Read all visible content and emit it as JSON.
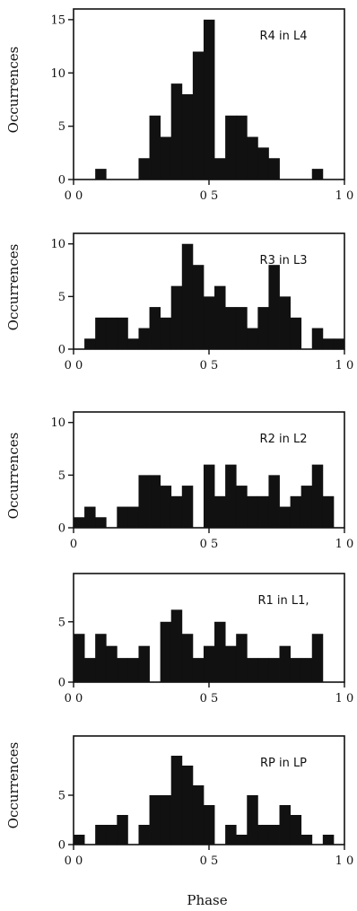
{
  "xlabel": "Phase",
  "chart_data": [
    {
      "type": "bar",
      "title": "R4 in L4",
      "ylabel": "Occurrences",
      "xlim": [
        0,
        1
      ],
      "ylim": [
        0,
        16
      ],
      "yticks": [
        "0",
        "5",
        "10",
        "15"
      ],
      "xticks": [
        "0 0",
        "0 5",
        "1 0"
      ],
      "bin_width": 0.04,
      "x": [
        0.08,
        0.24,
        0.28,
        0.32,
        0.36,
        0.4,
        0.44,
        0.48,
        0.52,
        0.56,
        0.6,
        0.64,
        0.68,
        0.72,
        0.76,
        0.88
      ],
      "values": [
        1,
        2,
        6,
        4,
        9,
        8,
        12,
        15,
        2,
        6,
        6,
        4,
        3,
        2,
        0,
        1
      ]
    },
    {
      "type": "bar",
      "title": "R3 in L3",
      "ylabel": "Occurrences",
      "xlim": [
        0,
        1
      ],
      "ylim": [
        0,
        11
      ],
      "yticks": [
        "0",
        "5",
        "10"
      ],
      "xticks": [
        "0 0",
        "0 5",
        "1 0"
      ],
      "bin_width": 0.04,
      "x": [
        0.0,
        0.04,
        0.08,
        0.12,
        0.16,
        0.2,
        0.24,
        0.28,
        0.32,
        0.36,
        0.4,
        0.44,
        0.48,
        0.52,
        0.56,
        0.6,
        0.64,
        0.68,
        0.72,
        0.76,
        0.8,
        0.84,
        0.88,
        0.92,
        0.96
      ],
      "values": [
        0,
        1,
        3,
        3,
        3,
        1,
        2,
        4,
        3,
        6,
        10,
        8,
        5,
        6,
        4,
        4,
        2,
        4,
        8,
        5,
        3,
        0,
        2,
        1,
        1
      ]
    },
    {
      "type": "bar",
      "title": "R2 in L2",
      "ylabel": "Occurrences",
      "xlim": [
        0,
        1
      ],
      "ylim": [
        0,
        11
      ],
      "yticks": [
        "0",
        "5",
        "10"
      ],
      "xticks": [
        "0",
        "0 5",
        "1 0"
      ],
      "bin_width": 0.04,
      "x": [
        0.0,
        0.04,
        0.08,
        0.12,
        0.16,
        0.2,
        0.24,
        0.28,
        0.32,
        0.36,
        0.4,
        0.44,
        0.48,
        0.52,
        0.56,
        0.6,
        0.64,
        0.68,
        0.72,
        0.76,
        0.8,
        0.84,
        0.88,
        0.92
      ],
      "values": [
        1,
        2,
        1,
        0,
        2,
        2,
        5,
        5,
        4,
        3,
        4,
        0,
        6,
        3,
        6,
        4,
        3,
        3,
        5,
        2,
        3,
        4,
        6,
        3
      ]
    },
    {
      "type": "bar",
      "title": "R1 in L1,",
      "ylabel": "",
      "xlim": [
        0,
        1
      ],
      "ylim": [
        0,
        9
      ],
      "yticks": [
        "0",
        "5"
      ],
      "xticks": [
        "0 0",
        "0 5",
        "1 0"
      ],
      "bin_width": 0.04,
      "x": [
        0.0,
        0.04,
        0.08,
        0.12,
        0.16,
        0.2,
        0.24,
        0.28,
        0.32,
        0.36,
        0.4,
        0.44,
        0.48,
        0.52,
        0.56,
        0.6,
        0.64,
        0.68,
        0.72,
        0.76,
        0.8,
        0.84,
        0.88
      ],
      "values": [
        4,
        2,
        4,
        3,
        2,
        2,
        3,
        0,
        5,
        6,
        4,
        2,
        3,
        5,
        3,
        4,
        2,
        2,
        2,
        3,
        2,
        2,
        4
      ]
    },
    {
      "type": "bar",
      "title": "RP in LP",
      "ylabel": "Occurrences",
      "xlim": [
        0,
        1
      ],
      "ylim": [
        0,
        11
      ],
      "yticks": [
        "0",
        "5"
      ],
      "xticks": [
        "0 0",
        "0 5",
        "1 0"
      ],
      "bin_width": 0.04,
      "x": [
        0.0,
        0.04,
        0.08,
        0.12,
        0.16,
        0.2,
        0.24,
        0.28,
        0.32,
        0.36,
        0.4,
        0.44,
        0.48,
        0.52,
        0.56,
        0.6,
        0.64,
        0.68,
        0.72,
        0.76,
        0.8,
        0.84,
        0.88,
        0.92,
        0.96
      ],
      "values": [
        1,
        0,
        2,
        2,
        3,
        0,
        2,
        5,
        5,
        9,
        8,
        6,
        4,
        0,
        2,
        1,
        5,
        2,
        2,
        4,
        3,
        1,
        0,
        1,
        0
      ]
    }
  ]
}
